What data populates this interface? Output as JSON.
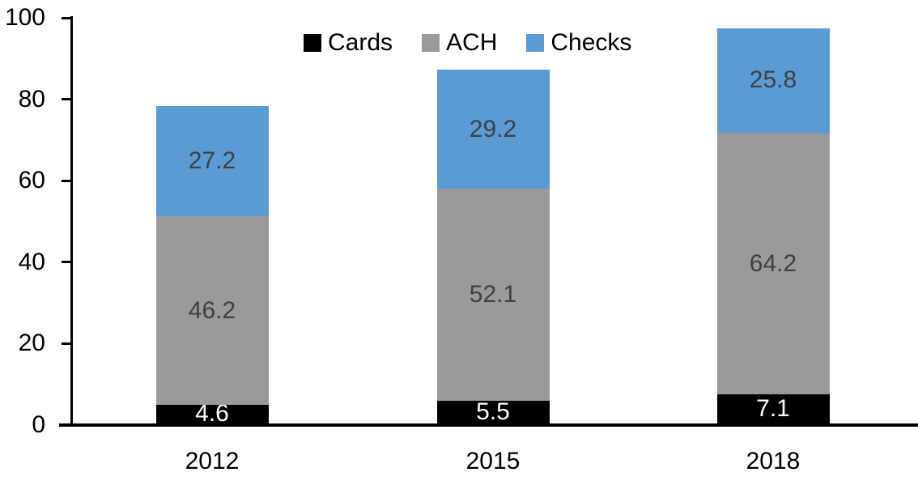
{
  "chart_data": {
    "type": "bar",
    "stacked": true,
    "title": "",
    "categories": [
      "2012",
      "2015",
      "2018"
    ],
    "series": [
      {
        "name": "Cards",
        "color": "#000000",
        "label_color": "#ffffff",
        "values": [
          4.6,
          5.5,
          7.1
        ]
      },
      {
        "name": "ACH",
        "color": "#9a9a9a",
        "label_color": "#404040",
        "values": [
          46.2,
          52.1,
          64.2
        ]
      },
      {
        "name": "Checks",
        "color": "#5b9bd5",
        "label_color": "#404040",
        "values": [
          27.2,
          29.2,
          25.8
        ]
      }
    ],
    "totals": [
      78.0,
      86.8,
      97.1
    ],
    "xlabel": "",
    "ylabel": "",
    "ylim": [
      0,
      100
    ],
    "y_ticks": [
      0,
      20,
      40,
      60,
      80,
      100
    ],
    "grid": false,
    "legend_position": "top-center",
    "axis_color": "#000000"
  }
}
